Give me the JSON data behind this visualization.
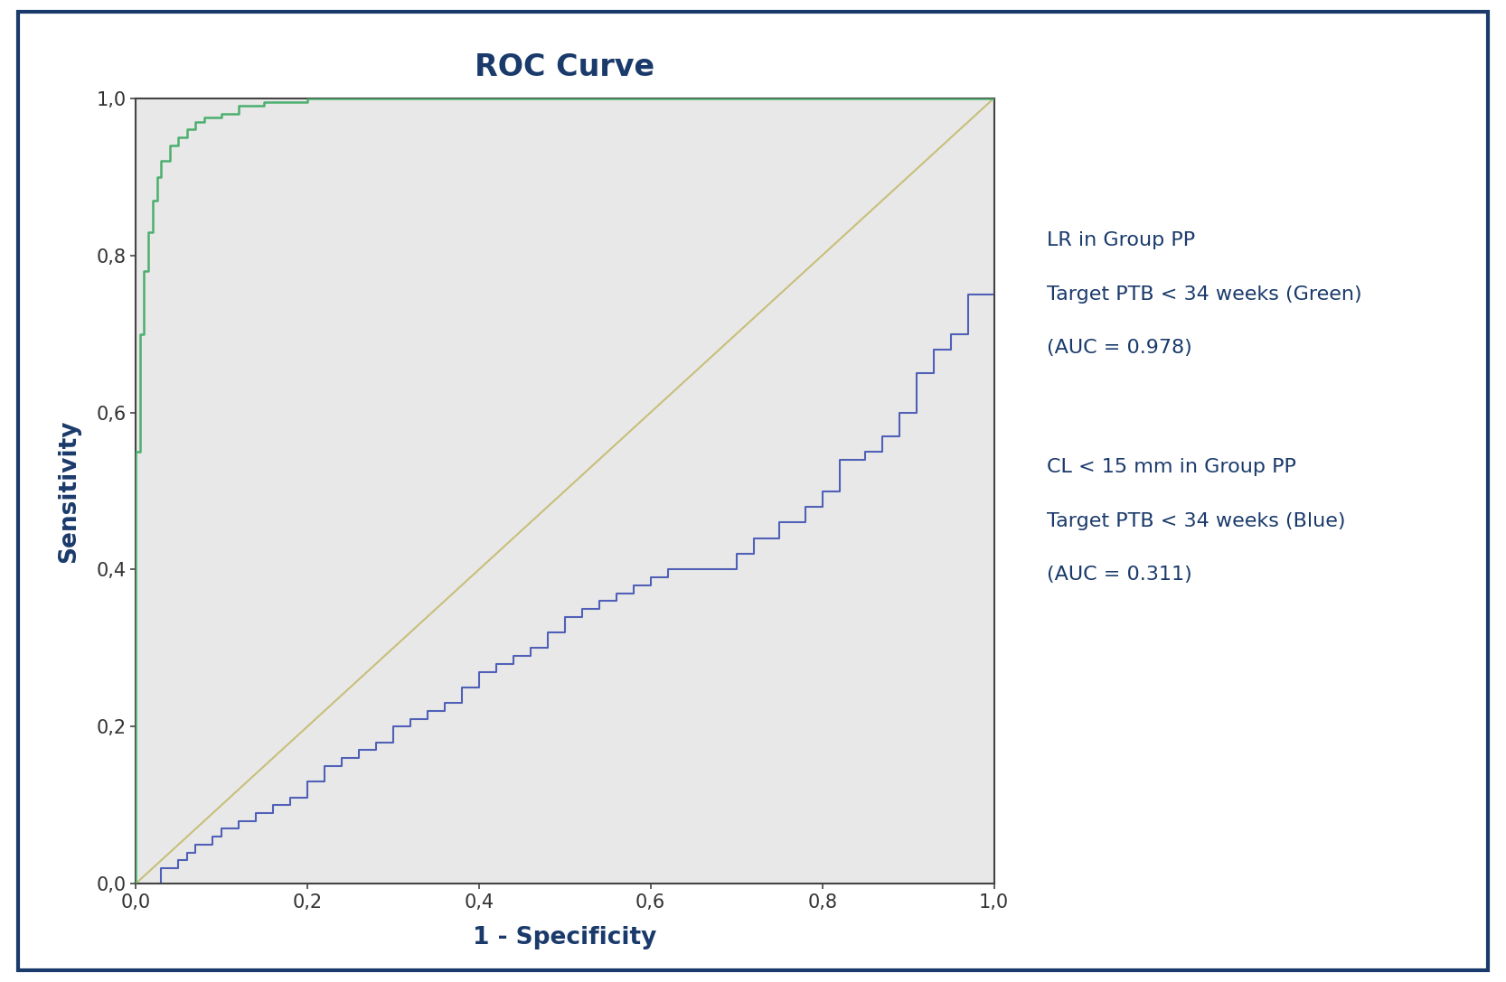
{
  "title": "ROC Curve",
  "title_color": "#1a3a6b",
  "title_fontsize": 24,
  "xlabel": "1 - Specificity",
  "ylabel": "Sensitivity",
  "xlabel_color": "#1a3a6b",
  "ylabel_color": "#1a3a6b",
  "xlabel_fontsize": 19,
  "ylabel_fontsize": 19,
  "tick_color": "#333333",
  "tick_fontsize": 15,
  "axis_bg_color": "#e8e8e8",
  "fig_bg_color": "#ffffff",
  "border_color": "#1a3a6b",
  "plot_border_color": "#444444",
  "diagonal_color": "#c8bf7a",
  "green_curve_color": "#4caf6e",
  "blue_curve_color": "#5060b8",
  "annotation1_line1": "LR in Group PP",
  "annotation1_line2": "Target PTB < 34 weeks (Green)",
  "annotation1_line3": "(AUC = 0.978)",
  "annotation2_line1": "CL < 15 mm in Group PP",
  "annotation2_line2": "Target PTB < 34 weeks (Blue)",
  "annotation2_line3": "(AUC = 0.311)",
  "annotation_color": "#1a3a6b",
  "annotation_fontsize": 16,
  "xlim": [
    0,
    1
  ],
  "ylim": [
    0,
    1
  ],
  "xticks": [
    0.0,
    0.2,
    0.4,
    0.6,
    0.8,
    1.0
  ],
  "yticks": [
    0.0,
    0.2,
    0.4,
    0.6,
    0.8,
    1.0
  ],
  "xtick_labels": [
    "0,0",
    "0,2",
    "0,4",
    "0,6",
    "0,8",
    "1,0"
  ],
  "ytick_labels": [
    "0,0",
    "0,2",
    "0,4",
    "0,6",
    "0,8",
    "1,0"
  ],
  "green_fpr": [
    0.0,
    0.0,
    0.005,
    0.005,
    0.01,
    0.01,
    0.015,
    0.015,
    0.02,
    0.02,
    0.025,
    0.025,
    0.03,
    0.03,
    0.04,
    0.04,
    0.05,
    0.05,
    0.06,
    0.06,
    0.07,
    0.07,
    0.08,
    0.08,
    0.1,
    0.1,
    0.12,
    0.12,
    0.15,
    0.15,
    0.2,
    0.2,
    0.25,
    0.25,
    1.0
  ],
  "green_tpr": [
    0.0,
    0.55,
    0.55,
    0.7,
    0.7,
    0.78,
    0.78,
    0.83,
    0.83,
    0.87,
    0.87,
    0.9,
    0.9,
    0.92,
    0.92,
    0.94,
    0.94,
    0.95,
    0.95,
    0.96,
    0.96,
    0.97,
    0.97,
    0.975,
    0.975,
    0.98,
    0.98,
    0.99,
    0.99,
    0.995,
    0.995,
    1.0,
    1.0,
    1.0,
    1.0
  ],
  "blue_fpr": [
    0.0,
    0.02,
    0.03,
    0.04,
    0.05,
    0.06,
    0.07,
    0.08,
    0.09,
    0.1,
    0.12,
    0.14,
    0.16,
    0.18,
    0.2,
    0.22,
    0.24,
    0.26,
    0.28,
    0.3,
    0.32,
    0.34,
    0.36,
    0.38,
    0.4,
    0.42,
    0.44,
    0.46,
    0.48,
    0.5,
    0.52,
    0.54,
    0.56,
    0.58,
    0.6,
    0.62,
    0.65,
    0.68,
    0.7,
    0.72,
    0.75,
    0.78,
    0.8,
    0.82,
    0.85,
    0.87,
    0.89,
    0.91,
    0.93,
    0.95,
    0.97,
    1.0
  ],
  "blue_tpr": [
    0.0,
    0.0,
    0.02,
    0.02,
    0.03,
    0.04,
    0.05,
    0.05,
    0.06,
    0.07,
    0.08,
    0.09,
    0.1,
    0.11,
    0.13,
    0.15,
    0.16,
    0.17,
    0.18,
    0.2,
    0.21,
    0.22,
    0.23,
    0.25,
    0.27,
    0.28,
    0.29,
    0.3,
    0.32,
    0.34,
    0.35,
    0.36,
    0.37,
    0.38,
    0.39,
    0.4,
    0.4,
    0.4,
    0.42,
    0.44,
    0.46,
    0.48,
    0.5,
    0.54,
    0.55,
    0.57,
    0.6,
    0.65,
    0.68,
    0.7,
    0.75,
    1.0
  ]
}
